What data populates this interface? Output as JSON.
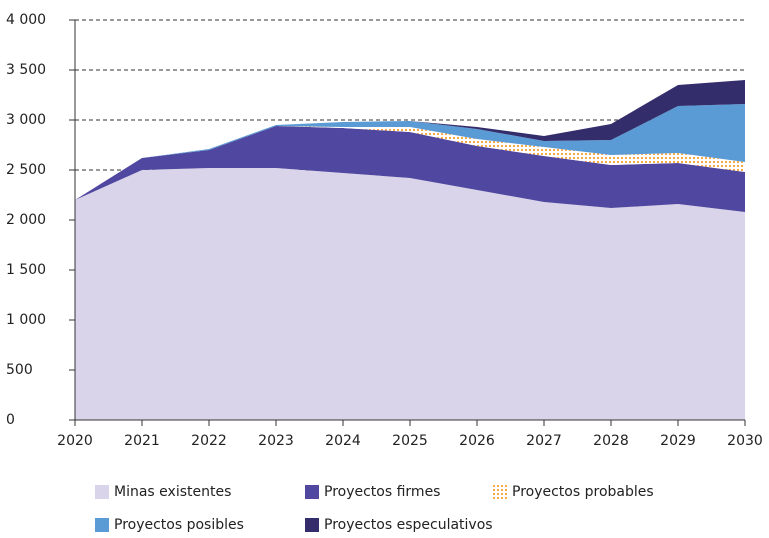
{
  "chart_data": {
    "type": "stacked_area",
    "x": [
      2020,
      2021,
      2022,
      2023,
      2024,
      2025,
      2026,
      2027,
      2028,
      2029,
      2030
    ],
    "series": [
      {
        "name": "Minas existentes",
        "color": "#d9d4ea",
        "values": [
          2200,
          2500,
          2520,
          2520,
          2470,
          2420,
          2300,
          2180,
          2120,
          2160,
          2080
        ]
      },
      {
        "name": "Proyectos firmes",
        "color": "#5048a0",
        "values": [
          0,
          120,
          180,
          420,
          450,
          460,
          440,
          460,
          430,
          410,
          400
        ]
      },
      {
        "name": "Proyectos probables",
        "color": "#f5a030",
        "pattern": "dots",
        "values": [
          0,
          0,
          0,
          0,
          10,
          50,
          70,
          90,
          100,
          100,
          100
        ]
      },
      {
        "name": "Proyectos posibles",
        "color": "#5b9bd5",
        "values": [
          0,
          0,
          10,
          10,
          50,
          60,
          100,
          60,
          150,
          470,
          580
        ]
      },
      {
        "name": "Proyectos especulativos",
        "color": "#332d6b",
        "values": [
          0,
          0,
          0,
          0,
          0,
          0,
          20,
          50,
          160,
          210,
          240
        ]
      }
    ],
    "xlim": [
      2020,
      2030
    ],
    "xticks": [
      2020,
      2021,
      2022,
      2023,
      2024,
      2025,
      2026,
      2027,
      2028,
      2029,
      2030
    ],
    "ylim": [
      0,
      4000
    ],
    "yticks": [
      0,
      500,
      {
        "value": 1000,
        "label": "1 000"
      },
      {
        "value": 1500,
        "label": "1 500"
      },
      {
        "value": 2000,
        "label": "2 000"
      },
      {
        "value": 2500,
        "label": "2 500"
      },
      {
        "value": 3000,
        "label": "3 000"
      },
      {
        "value": 3500,
        "label": "3 500"
      },
      {
        "value": 4000,
        "label": "4 000"
      }
    ],
    "grid": true,
    "legend": "bottom"
  }
}
